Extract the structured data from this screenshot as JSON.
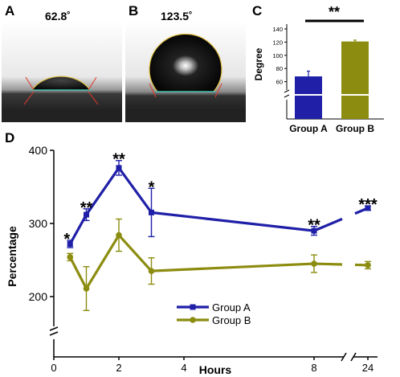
{
  "panels": {
    "a": {
      "letter": "A",
      "angle_label": "62.8˚"
    },
    "b": {
      "letter": "B",
      "angle_label": "123.5˚"
    },
    "c": {
      "letter": "C"
    },
    "d": {
      "letter": "D"
    }
  },
  "colors": {
    "group_a": "#1f1fa8",
    "group_b": "#8c8c10"
  },
  "chart_data": [
    {
      "panel": "C",
      "type": "bar",
      "categories": [
        "Group A",
        "Group B"
      ],
      "values": [
        68,
        121
      ],
      "errors": [
        8,
        2
      ],
      "ylabel": "Degree",
      "yticks": [
        60,
        80,
        100,
        120,
        140
      ],
      "ylim": [
        40,
        145
      ],
      "axis_break": "y",
      "significance": "**"
    },
    {
      "panel": "D",
      "type": "line",
      "xlabel": "Hours",
      "ylabel": "Percentage",
      "xticks": [
        0,
        2,
        4,
        8,
        24
      ],
      "yticks": [
        200,
        300,
        400
      ],
      "ylim": [
        0,
        400
      ],
      "x_axis_break": "between 8 and 24",
      "y_axis_break": "below 200",
      "legend_position": "bottom-center",
      "series": [
        {
          "name": "Group A",
          "marker": "square",
          "x": [
            0.5,
            1,
            2,
            3,
            8,
            24
          ],
          "y": [
            272,
            312,
            376,
            315,
            290,
            321
          ],
          "err": [
            5,
            8,
            10,
            33,
            6,
            3
          ],
          "significance": [
            "*",
            "**",
            "**",
            "*",
            "**",
            "***"
          ]
        },
        {
          "name": "Group B",
          "marker": "circle",
          "x": [
            0.5,
            1,
            2,
            3,
            8,
            24
          ],
          "y": [
            254,
            211,
            284,
            235,
            245,
            243
          ],
          "err": [
            5,
            30,
            22,
            18,
            12,
            5
          ]
        }
      ]
    }
  ]
}
